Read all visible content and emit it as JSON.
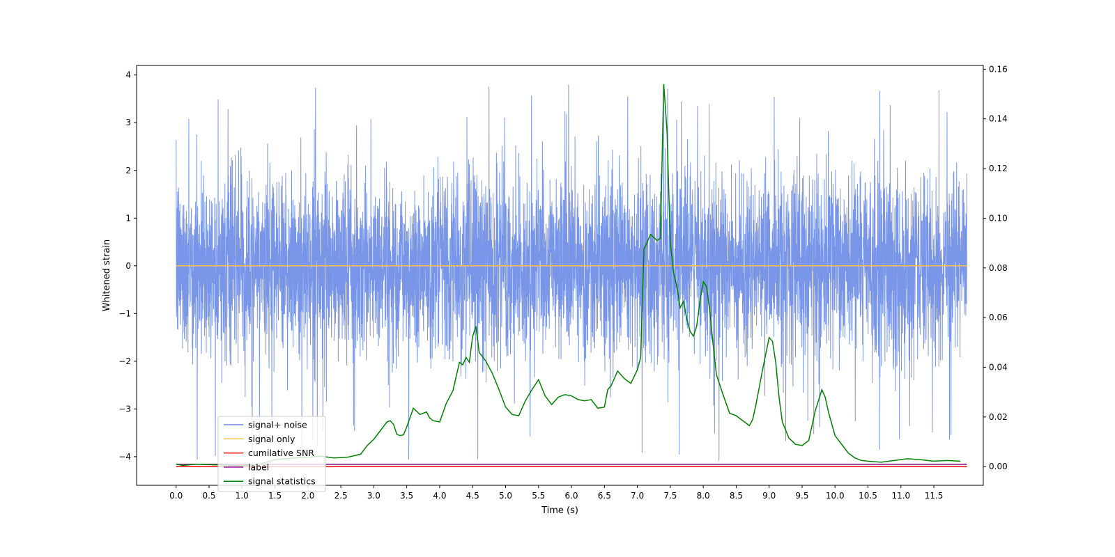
{
  "chart_data": {
    "type": "line",
    "title": "",
    "xlabel": "Time (s)",
    "ylabel": "Whitened strain",
    "y2label": "",
    "xlim": [
      -0.6,
      12.25
    ],
    "ylim": [
      -4.6,
      4.2
    ],
    "y2lim": [
      -0.0075,
      0.1615
    ],
    "x_ticks": [
      0.0,
      0.5,
      1.0,
      1.5,
      2.0,
      2.5,
      3.0,
      3.5,
      4.0,
      4.5,
      5.0,
      5.5,
      6.0,
      6.5,
      7.0,
      7.5,
      8.0,
      8.5,
      9.0,
      9.5,
      10.0,
      10.5,
      11.0,
      11.5
    ],
    "x_tick_labels": [
      "0.0",
      "0.5",
      "1.0",
      "1.5",
      "2.0",
      "2.5",
      "3.0",
      "3.5",
      "4.0",
      "4.5",
      "5.0",
      "5.5",
      "6.0",
      "6.5",
      "7.0",
      "7.5",
      "8.0",
      "8.5",
      "9.0",
      "9.5",
      "10.0",
      "10.5",
      "11.0",
      "11.5"
    ],
    "y_ticks": [
      -4,
      -3,
      -2,
      -1,
      0,
      1,
      2,
      3,
      4
    ],
    "y_tick_labels": [
      "−4",
      "−3",
      "−2",
      "−1",
      "0",
      "1",
      "2",
      "3",
      "4"
    ],
    "y2_ticks": [
      0.0,
      0.02,
      0.04,
      0.06,
      0.08,
      0.1,
      0.12,
      0.14,
      0.16
    ],
    "y2_tick_labels": [
      "0.00",
      "0.02",
      "0.04",
      "0.06",
      "0.08",
      "0.10",
      "0.12",
      "0.14",
      "0.16"
    ],
    "grid": false,
    "legend_position": "lower-left",
    "series": [
      {
        "name": "signal+ noise",
        "color": "#6a8ae6",
        "axis": "left",
        "kind": "noise",
        "x_range": [
          0.0,
          12.0
        ],
        "typical_range": [
          -2.0,
          2.0
        ],
        "extreme_range": [
          -4.15,
          3.8
        ]
      },
      {
        "name": "signal only",
        "color": "#ffc04d",
        "axis": "left",
        "x": [
          0.0,
          12.0
        ],
        "y": [
          0.0,
          0.0
        ]
      },
      {
        "name": "cumilative SNR",
        "color": "#ff0000",
        "axis": "right",
        "x": [
          0.0,
          12.0
        ],
        "y": [
          0.0,
          0.0
        ]
      },
      {
        "name": "label",
        "color": "#800080",
        "axis": "left",
        "x": [
          0.0,
          12.0
        ],
        "y": [
          -4.16,
          -4.16
        ]
      },
      {
        "name": "signal statistics",
        "color": "#008000",
        "axis": "right",
        "x": [
          0.0,
          0.1,
          0.3,
          0.5,
          0.8,
          1.0,
          1.3,
          1.5,
          1.8,
          2.0,
          2.2,
          2.4,
          2.6,
          2.8,
          2.9,
          3.0,
          3.1,
          3.2,
          3.25,
          3.3,
          3.35,
          3.4,
          3.45,
          3.5,
          3.6,
          3.7,
          3.8,
          3.85,
          3.9,
          4.0,
          4.1,
          4.2,
          4.3,
          4.35,
          4.4,
          4.45,
          4.5,
          4.55,
          4.6,
          4.7,
          4.8,
          4.9,
          5.0,
          5.1,
          5.2,
          5.3,
          5.4,
          5.5,
          5.6,
          5.7,
          5.8,
          5.9,
          6.0,
          6.1,
          6.2,
          6.3,
          6.4,
          6.5,
          6.55,
          6.6,
          6.7,
          6.8,
          6.9,
          7.0,
          7.05,
          7.1,
          7.2,
          7.3,
          7.35,
          7.4,
          7.45,
          7.5,
          7.55,
          7.6,
          7.65,
          7.7,
          7.75,
          7.8,
          7.85,
          7.9,
          7.95,
          8.0,
          8.05,
          8.1,
          8.15,
          8.2,
          8.3,
          8.4,
          8.5,
          8.6,
          8.7,
          8.75,
          8.8,
          8.9,
          9.0,
          9.05,
          9.1,
          9.15,
          9.2,
          9.3,
          9.4,
          9.5,
          9.6,
          9.7,
          9.8,
          9.85,
          9.9,
          10.0,
          10.1,
          10.2,
          10.3,
          10.4,
          10.5,
          10.7,
          10.9,
          11.1,
          11.3,
          11.5,
          11.7,
          11.9
        ],
        "y": [
          0.001,
          0.0005,
          0.001,
          0.0008,
          0.0006,
          0.0004,
          0.0012,
          0.0028,
          0.0035,
          0.0038,
          0.0042,
          0.0035,
          0.0038,
          0.005,
          0.0085,
          0.011,
          0.0145,
          0.018,
          0.0185,
          0.017,
          0.013,
          0.0125,
          0.0128,
          0.016,
          0.0235,
          0.021,
          0.022,
          0.0195,
          0.0185,
          0.018,
          0.0255,
          0.0305,
          0.042,
          0.041,
          0.044,
          0.042,
          0.0525,
          0.0565,
          0.046,
          0.0425,
          0.0375,
          0.031,
          0.024,
          0.021,
          0.0205,
          0.0265,
          0.031,
          0.035,
          0.0285,
          0.025,
          0.028,
          0.029,
          0.0285,
          0.027,
          0.0265,
          0.027,
          0.0235,
          0.024,
          0.031,
          0.0325,
          0.0385,
          0.0355,
          0.0335,
          0.039,
          0.044,
          0.0875,
          0.0935,
          0.091,
          0.092,
          0.154,
          0.135,
          0.09,
          0.078,
          0.0725,
          0.064,
          0.0665,
          0.0595,
          0.0545,
          0.0525,
          0.0565,
          0.0665,
          0.0745,
          0.0725,
          0.0625,
          0.049,
          0.037,
          0.029,
          0.0215,
          0.0205,
          0.0185,
          0.0165,
          0.019,
          0.025,
          0.039,
          0.052,
          0.0505,
          0.042,
          0.028,
          0.018,
          0.0115,
          0.009,
          0.0085,
          0.0105,
          0.0225,
          0.031,
          0.028,
          0.022,
          0.0125,
          0.009,
          0.0055,
          0.0035,
          0.0025,
          0.0022,
          0.0018,
          0.0025,
          0.0032,
          0.0028,
          0.0022,
          0.0025,
          0.0022
        ]
      }
    ]
  }
}
